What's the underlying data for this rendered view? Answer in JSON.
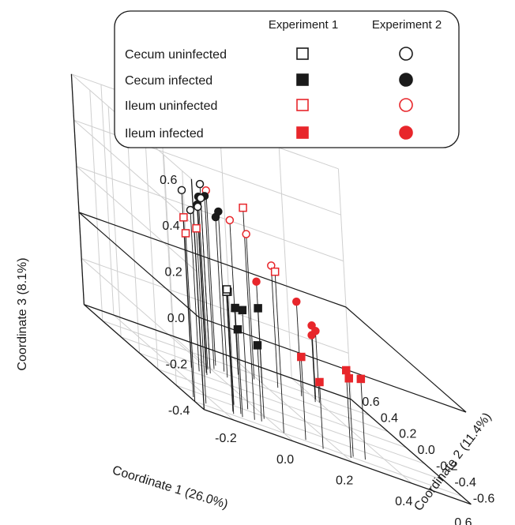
{
  "chart_data": {
    "type": "scatter3d",
    "xlabel": "Coordinate 1 (26.0%)",
    "ylabel": "Coordinate 2 (11.4%)",
    "zlabel": "Coordinate 3 (8.1%)",
    "xlim": [
      -0.3,
      0.6
    ],
    "ylim": [
      -0.7,
      0.6
    ],
    "zlim": [
      -0.4,
      0.6
    ],
    "x_ticks": [
      "-0.2",
      "0.0",
      "0.2",
      "0.4",
      "0.6"
    ],
    "y_ticks": [
      "-0.6",
      "-0.4",
      "-0.2",
      "0.0",
      "0.2",
      "0.4",
      "0.6"
    ],
    "z_ticks": [
      "-0.4",
      "-0.2",
      "0.0",
      "0.2",
      "0.4",
      "0.6"
    ],
    "grid": true,
    "legend_position": "top",
    "legend": {
      "col_headers": [
        "Experiment 1",
        "Experiment 2"
      ],
      "rows": [
        {
          "label": "Cecum uninfected"
        },
        {
          "label": "Cecum infected"
        },
        {
          "label": "Ileum uninfected"
        },
        {
          "label": "Ileum infected"
        }
      ]
    },
    "group_colors": {
      "cecum": "#1a1a1a",
      "ileum": "#e8262b"
    },
    "series": [
      {
        "name": "Cecum uninfected",
        "experiment": "Experiment 1",
        "marker": "open-square",
        "color": "#1a1a1a",
        "points": [
          [
            -0.15,
            -0.53,
            0.12
          ],
          [
            -0.16,
            -0.57,
            0.14
          ],
          [
            -0.1,
            -0.38,
            0.09
          ]
        ]
      },
      {
        "name": "Cecum infected",
        "experiment": "Experiment 1",
        "marker": "filled-square",
        "color": "#1a1a1a",
        "points": [
          [
            -0.12,
            -0.52,
            0.06
          ],
          [
            -0.13,
            -0.57,
            -0.02
          ],
          [
            -0.05,
            -0.37,
            0.03
          ],
          [
            -0.02,
            -0.45,
            0.08
          ],
          [
            -0.05,
            -0.52,
            -0.07
          ]
        ]
      },
      {
        "name": "Ileum uninfected",
        "experiment": "Experiment 1",
        "marker": "open-square",
        "color": "#e8262b",
        "points": [
          [
            -0.3,
            -0.6,
            0.33
          ],
          [
            -0.28,
            -0.52,
            0.38
          ],
          [
            -0.25,
            -0.56,
            0.36
          ],
          [
            -0.08,
            -0.54,
            0.52
          ],
          [
            0.0,
            -0.6,
            0.3
          ]
        ]
      },
      {
        "name": "Ileum infected",
        "experiment": "Experiment 1",
        "marker": "filled-square",
        "color": "#e8262b",
        "points": [
          [
            0.08,
            -0.58,
            -0.04
          ],
          [
            0.12,
            -0.64,
            -0.11
          ],
          [
            0.22,
            -0.62,
            -0.02
          ],
          [
            0.24,
            -0.58,
            -0.06
          ],
          [
            0.29,
            -0.55,
            -0.05
          ]
        ]
      },
      {
        "name": "Cecum uninfected",
        "experiment": "Experiment 2",
        "marker": "open-circle",
        "color": "#1a1a1a",
        "points": [
          [
            -0.1,
            0.08,
            0.37
          ],
          [
            -0.03,
            0.1,
            0.36
          ],
          [
            0.0,
            0.2,
            0.4
          ],
          [
            -0.06,
            0.04,
            0.33
          ],
          [
            -0.08,
            0.06,
            0.3
          ]
        ]
      },
      {
        "name": "Cecum infected",
        "experiment": "Experiment 2",
        "marker": "filled-circle",
        "color": "#1a1a1a",
        "points": [
          [
            -0.02,
            0.16,
            0.35
          ],
          [
            0.02,
            0.22,
            0.35
          ],
          [
            0.04,
            0.14,
            0.32
          ],
          [
            -0.05,
            0.08,
            0.33
          ],
          [
            0.06,
            0.24,
            0.27
          ]
        ]
      },
      {
        "name": "Ileum uninfected",
        "experiment": "Experiment 2",
        "marker": "open-circle",
        "color": "#e8262b",
        "points": [
          [
            0.05,
            0.3,
            0.36
          ],
          [
            0.12,
            0.28,
            0.27
          ],
          [
            0.18,
            0.3,
            0.23
          ],
          [
            0.26,
            0.3,
            0.13
          ]
        ]
      },
      {
        "name": "Ileum infected",
        "experiment": "Experiment 2",
        "marker": "filled-circle",
        "color": "#e8262b",
        "points": [
          [
            0.2,
            0.28,
            0.04
          ],
          [
            0.34,
            0.3,
            0.01
          ],
          [
            0.4,
            0.3,
            -0.09
          ],
          [
            0.38,
            0.28,
            -0.11
          ],
          [
            0.4,
            0.34,
            -0.08
          ]
        ]
      }
    ]
  }
}
